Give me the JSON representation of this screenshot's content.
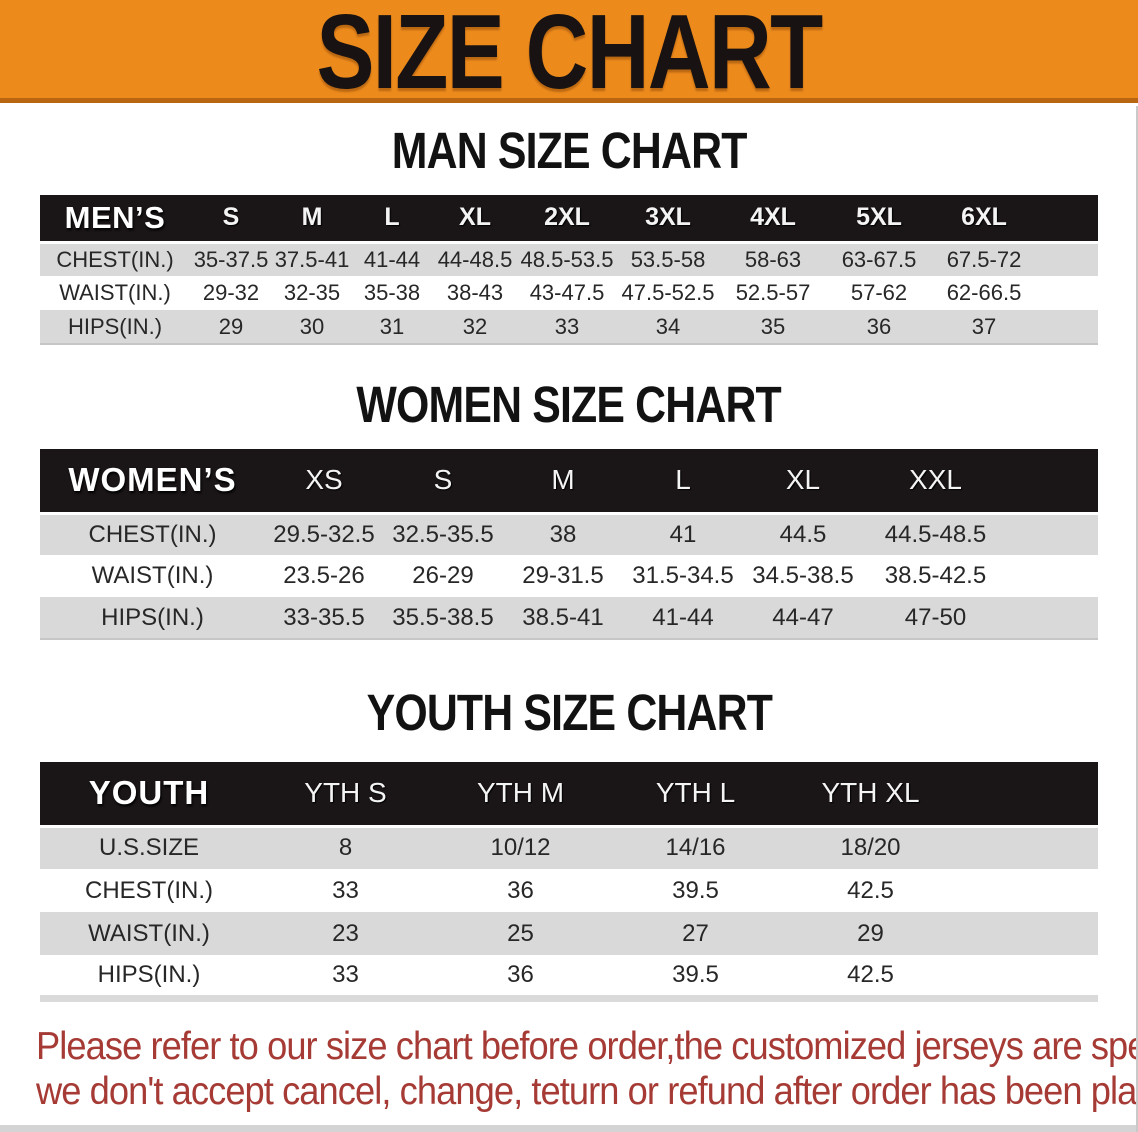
{
  "banner": {
    "title": "SIZE CHART"
  },
  "colors": {
    "banner_bg": "#ec8a1c",
    "header_bar": "#1a1516",
    "row_gray": "#d9d9d9",
    "footnote_red": "#a63a35"
  },
  "sections": [
    {
      "heading": "MAN SIZE CHART",
      "corner_label": "MEN’S",
      "columns": [
        "S",
        "M",
        "L",
        "XL",
        "2XL",
        "3XL",
        "4XL",
        "5XL",
        "6XL"
      ],
      "rows": [
        {
          "label": "CHEST(IN.)",
          "values": [
            "35-37.5",
            "37.5-41",
            "41-44",
            "44-48.5",
            "48.5-53.5",
            "53.5-58",
            "58-63",
            "63-67.5",
            "67.5-72"
          ]
        },
        {
          "label": "WAIST(IN.)",
          "values": [
            "29-32",
            "32-35",
            "35-38",
            "38-43",
            "43-47.5",
            "47.5-52.5",
            "52.5-57",
            "57-62",
            "62-66.5"
          ]
        },
        {
          "label": "HIPS(IN.)",
          "values": [
            "29",
            "30",
            "31",
            "32",
            "33",
            "34",
            "35",
            "36",
            "37"
          ]
        }
      ]
    },
    {
      "heading": "WOMEN SIZE CHART",
      "corner_label": "WOMEN’S",
      "columns": [
        "XS",
        "S",
        "M",
        "L",
        "XL",
        "XXL"
      ],
      "rows": [
        {
          "label": "CHEST(IN.)",
          "values": [
            "29.5-32.5",
            "32.5-35.5",
            "38",
            "41",
            "44.5",
            "44.5-48.5"
          ]
        },
        {
          "label": "WAIST(IN.)",
          "values": [
            "23.5-26",
            "26-29",
            "29-31.5",
            "31.5-34.5",
            "34.5-38.5",
            "38.5-42.5"
          ]
        },
        {
          "label": "HIPS(IN.)",
          "values": [
            "33-35.5",
            "35.5-38.5",
            "38.5-41",
            "41-44",
            "44-47",
            "47-50"
          ]
        }
      ]
    },
    {
      "heading": "YOUTH SIZE CHART",
      "corner_label": "YOUTH",
      "columns": [
        "YTH S",
        "YTH M",
        "YTH L",
        "YTH XL"
      ],
      "rows": [
        {
          "label": "U.S.SIZE",
          "values": [
            "8",
            "10/12",
            "14/16",
            "18/20"
          ]
        },
        {
          "label": "CHEST(IN.)",
          "values": [
            "33",
            "36",
            "39.5",
            "42.5"
          ]
        },
        {
          "label": "WAIST(IN.)",
          "values": [
            "23",
            "25",
            "27",
            "29"
          ]
        },
        {
          "label": "HIPS(IN.)",
          "values": [
            "33",
            "36",
            "39.5",
            "42.5"
          ]
        }
      ]
    }
  ],
  "footnote": {
    "line1": "Please refer to our size chart before order,the customized jerseys are special products,",
    "line2": "we don't accept cancel, change, teturn or refund after order has been placed!"
  }
}
